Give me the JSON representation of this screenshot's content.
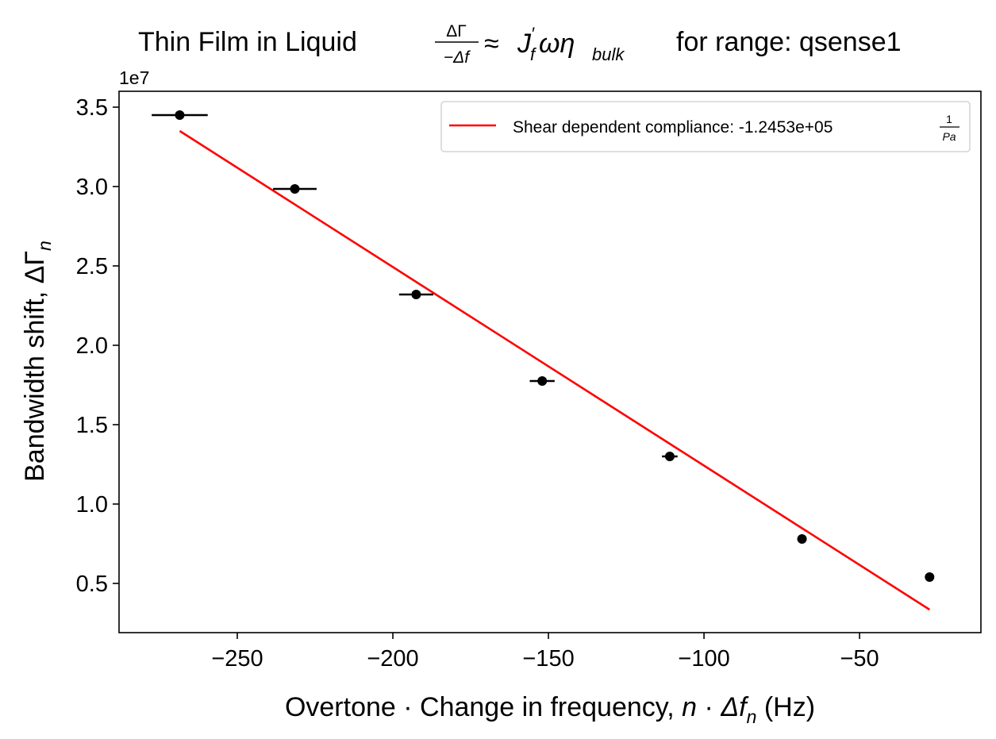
{
  "chart_data": {
    "type": "scatter",
    "title": {
      "prefix": "Thin Film in Liquid ",
      "frac_num": "ΔΓ",
      "frac_den": "−Δf",
      "approx": "≈",
      "J": "J",
      "J_prime": "′",
      "J_sub": "f",
      "omega_eta": "ωη",
      "eta_sub": "bulk",
      "suffix": "for range: qsense1"
    },
    "xlabel": {
      "text": "Overtone · Change in frequency, ",
      "n": "n",
      "dot": " · ",
      "delta_f": "Δf",
      "sub": "n",
      "unit": " (Hz)"
    },
    "ylabel": {
      "text": "Bandwidth shift, ",
      "symbol": "ΔΓ",
      "sub": "n"
    },
    "y_offset_label": "1e7",
    "y_scale_factor": 10000000,
    "xlim": [
      -288,
      -11
    ],
    "ylim": [
      1900000,
      36000000
    ],
    "x_ticks": [
      -250,
      -200,
      -150,
      -100,
      -50
    ],
    "x_tick_labels": [
      "−250",
      "−200",
      "−150",
      "−100",
      "−50"
    ],
    "y_ticks": [
      5000000,
      10000000,
      15000000,
      20000000,
      25000000,
      30000000,
      35000000
    ],
    "y_tick_labels": [
      "0.5",
      "1.0",
      "1.5",
      "2.0",
      "2.5",
      "3.0",
      "3.5"
    ],
    "grid": false,
    "points": [
      {
        "x": -268.5,
        "y": 34500000,
        "xerr": 9
      },
      {
        "x": -231.5,
        "y": 29850000,
        "xerr": 7
      },
      {
        "x": -192.5,
        "y": 23200000,
        "xerr": 5.5
      },
      {
        "x": -152.0,
        "y": 17750000,
        "xerr": 4
      },
      {
        "x": -111.0,
        "y": 13000000,
        "xerr": 2.5
      },
      {
        "x": -68.5,
        "y": 7800000,
        "xerr": 1.5
      },
      {
        "x": -27.5,
        "y": 5400000,
        "xerr": 0.5
      }
    ],
    "fit_line": {
      "x": [
        -268.5,
        -27.5
      ],
      "y": [
        33500000,
        3350000
      ],
      "color": "#ff0000"
    },
    "legend": {
      "placement": "upper-right",
      "label": "Shear dependent compliance: -1.2453e+05 ",
      "frac_num": "1",
      "frac_den": "Pa"
    },
    "marker_color": "#000000"
  }
}
